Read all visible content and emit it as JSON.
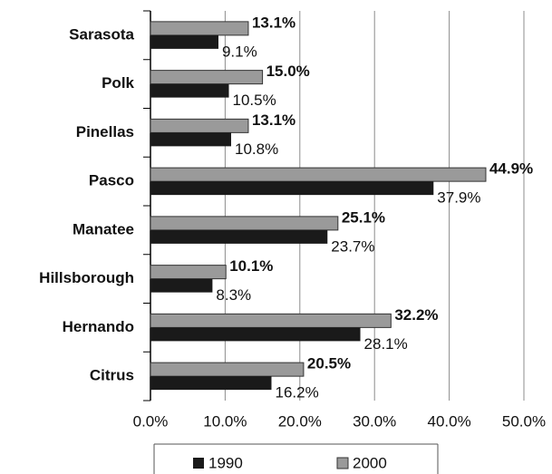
{
  "chart_data": {
    "type": "barh",
    "categories": [
      "Sarasota",
      "Polk",
      "Pinellas",
      "Pasco",
      "Manatee",
      "Hillsborough",
      "Hernando",
      "Citrus"
    ],
    "series": [
      {
        "name": "1990",
        "color": "#1a1a1a",
        "values": [
          9.1,
          10.5,
          10.8,
          37.9,
          23.7,
          8.3,
          28.1,
          16.2
        ],
        "value_labels": [
          "9.1%",
          "10.5%",
          "10.8%",
          "37.9%",
          "23.7%",
          "8.3%",
          "28.1%",
          "16.2%"
        ]
      },
      {
        "name": "2000",
        "color": "#9a9a9a",
        "values": [
          13.1,
          15.0,
          13.1,
          44.9,
          25.1,
          10.1,
          32.2,
          20.5
        ],
        "value_labels": [
          "13.1%",
          "15.0%",
          "13.1%",
          "44.9%",
          "25.1%",
          "10.1%",
          "32.2%",
          "20.5%"
        ]
      }
    ],
    "xlim": [
      0,
      50
    ],
    "xticks": [
      {
        "value": 0,
        "label": "0.0%"
      },
      {
        "value": 10,
        "label": "10.0%"
      },
      {
        "value": 20,
        "label": "20.0%"
      },
      {
        "value": 30,
        "label": "30.0%"
      },
      {
        "value": 40,
        "label": "40.0%"
      },
      {
        "value": 50,
        "label": "50.0%"
      }
    ],
    "grid": true,
    "legend": "bottom"
  }
}
